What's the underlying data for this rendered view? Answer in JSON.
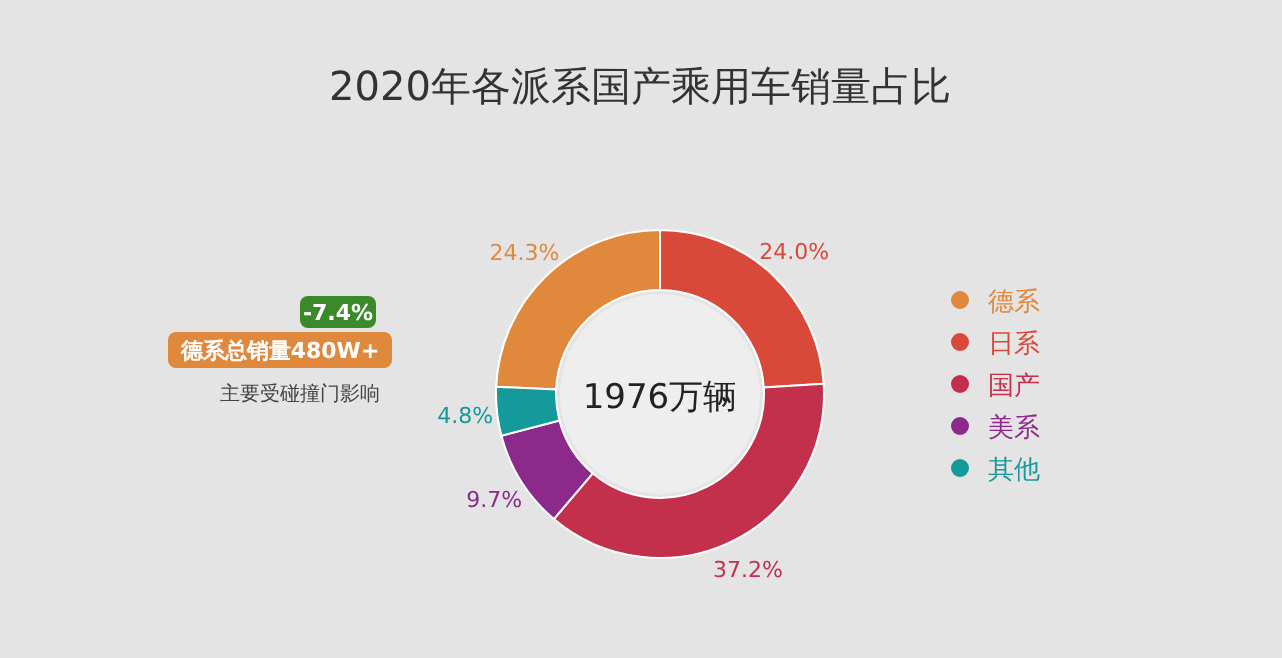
{
  "chart_data": {
    "type": "donut",
    "title": "2020年各派系国产乘用车销量占比",
    "categories": [
      "德系",
      "日系",
      "国产",
      "美系",
      "其他"
    ],
    "values": [
      24.3,
      24.0,
      37.2,
      9.7,
      4.8
    ],
    "colors": [
      "#e0883c",
      "#d9493a",
      "#c2304c",
      "#8c2a8c",
      "#15999a"
    ],
    "value_labels": [
      "24.3%",
      "24.0%",
      "37.2%",
      "9.7%",
      "4.8%"
    ],
    "legend": "right",
    "annotations": [
      "1976万辆",
      "-7.4%",
      "德系总销量480W+",
      "主要受碰撞门影响"
    ]
  }
}
